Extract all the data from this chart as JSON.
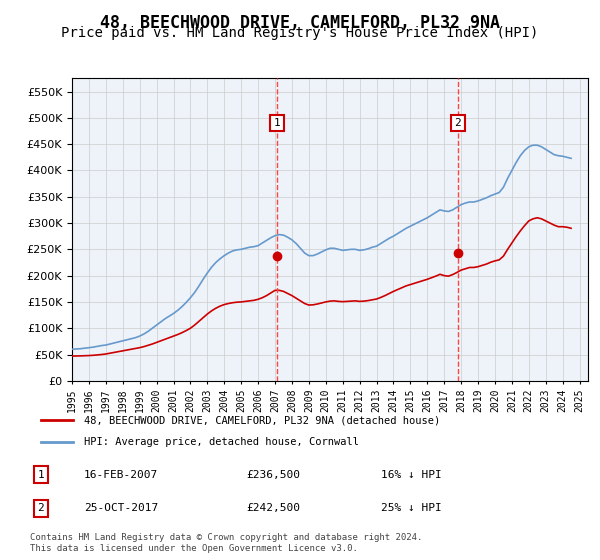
{
  "title": "48, BEECHWOOD DRIVE, CAMELFORD, PL32 9NA",
  "subtitle": "Price paid vs. HM Land Registry's House Price Index (HPI)",
  "title_fontsize": 12,
  "subtitle_fontsize": 10,
  "ylabel_ticks": [
    "£0",
    "£50K",
    "£100K",
    "£150K",
    "£200K",
    "£250K",
    "£300K",
    "£350K",
    "£400K",
    "£450K",
    "£500K",
    "£550K"
  ],
  "ytick_values": [
    0,
    50000,
    100000,
    150000,
    200000,
    250000,
    300000,
    350000,
    400000,
    450000,
    500000,
    550000
  ],
  "ylim": [
    0,
    575000
  ],
  "xlim_start": 1995.0,
  "xlim_end": 2025.5,
  "sale1_date": "16-FEB-2007",
  "sale1_price": 236500,
  "sale1_year": 2007.12,
  "sale1_label": "1",
  "sale1_hpi_pct": "16% ↓ HPI",
  "sale2_date": "25-OCT-2017",
  "sale2_price": 242500,
  "sale2_year": 2017.81,
  "sale2_label": "2",
  "sale2_hpi_pct": "25% ↓ HPI",
  "line_red_color": "#cc0000",
  "line_blue_color": "#6699cc",
  "marker_box_color": "#cc0000",
  "vline_color": "#ff4444",
  "background_color": "#e8f0f8",
  "plot_bg_color": "#eef3fa",
  "legend_address": "48, BEECHWOOD DRIVE, CAMELFORD, PL32 9NA (detached house)",
  "legend_hpi": "HPI: Average price, detached house, Cornwall",
  "footer": "Contains HM Land Registry data © Crown copyright and database right 2024.\nThis data is licensed under the Open Government Licence v3.0.",
  "hpi_years": [
    1995.0,
    1995.25,
    1995.5,
    1995.75,
    1996.0,
    1996.25,
    1996.5,
    1996.75,
    1997.0,
    1997.25,
    1997.5,
    1997.75,
    1998.0,
    1998.25,
    1998.5,
    1998.75,
    1999.0,
    1999.25,
    1999.5,
    1999.75,
    2000.0,
    2000.25,
    2000.5,
    2000.75,
    2001.0,
    2001.25,
    2001.5,
    2001.75,
    2002.0,
    2002.25,
    2002.5,
    2002.75,
    2003.0,
    2003.25,
    2003.5,
    2003.75,
    2004.0,
    2004.25,
    2004.5,
    2004.75,
    2005.0,
    2005.25,
    2005.5,
    2005.75,
    2006.0,
    2006.25,
    2006.5,
    2006.75,
    2007.0,
    2007.25,
    2007.5,
    2007.75,
    2008.0,
    2008.25,
    2008.5,
    2008.75,
    2009.0,
    2009.25,
    2009.5,
    2009.75,
    2010.0,
    2010.25,
    2010.5,
    2010.75,
    2011.0,
    2011.25,
    2011.5,
    2011.75,
    2012.0,
    2012.25,
    2012.5,
    2012.75,
    2013.0,
    2013.25,
    2013.5,
    2013.75,
    2014.0,
    2014.25,
    2014.5,
    2014.75,
    2015.0,
    2015.25,
    2015.5,
    2015.75,
    2016.0,
    2016.25,
    2016.5,
    2016.75,
    2017.0,
    2017.25,
    2017.5,
    2017.75,
    2018.0,
    2018.25,
    2018.5,
    2018.75,
    2019.0,
    2019.25,
    2019.5,
    2019.75,
    2020.0,
    2020.25,
    2020.5,
    2020.75,
    2021.0,
    2021.25,
    2021.5,
    2021.75,
    2022.0,
    2022.25,
    2022.5,
    2022.75,
    2023.0,
    2023.25,
    2023.5,
    2023.75,
    2024.0,
    2024.25,
    2024.5
  ],
  "hpi_values": [
    60000,
    60500,
    61000,
    62000,
    63000,
    64000,
    65500,
    67000,
    68000,
    70000,
    72000,
    74000,
    76000,
    78000,
    80000,
    82000,
    85000,
    89000,
    94000,
    100000,
    106000,
    112000,
    118000,
    123000,
    128000,
    134000,
    141000,
    149000,
    158000,
    168000,
    180000,
    193000,
    205000,
    216000,
    225000,
    232000,
    238000,
    243000,
    247000,
    249000,
    250000,
    252000,
    254000,
    255000,
    257000,
    262000,
    267000,
    272000,
    276000,
    278000,
    277000,
    273000,
    268000,
    261000,
    252000,
    243000,
    238000,
    238000,
    241000,
    245000,
    249000,
    252000,
    252000,
    250000,
    248000,
    249000,
    250000,
    250000,
    248000,
    249000,
    251000,
    254000,
    256000,
    261000,
    266000,
    271000,
    275000,
    280000,
    285000,
    290000,
    294000,
    298000,
    302000,
    306000,
    310000,
    315000,
    320000,
    325000,
    323000,
    322000,
    325000,
    330000,
    335000,
    338000,
    340000,
    340000,
    342000,
    345000,
    348000,
    352000,
    355000,
    358000,
    368000,
    385000,
    400000,
    415000,
    428000,
    438000,
    445000,
    448000,
    448000,
    445000,
    440000,
    435000,
    430000,
    428000,
    427000,
    425000,
    423000
  ],
  "red_years": [
    1995.0,
    1995.25,
    1995.5,
    1995.75,
    1996.0,
    1996.25,
    1996.5,
    1996.75,
    1997.0,
    1997.25,
    1997.5,
    1997.75,
    1998.0,
    1998.25,
    1998.5,
    1998.75,
    1999.0,
    1999.25,
    1999.5,
    1999.75,
    2000.0,
    2000.25,
    2000.5,
    2000.75,
    2001.0,
    2001.25,
    2001.5,
    2001.75,
    2002.0,
    2002.25,
    2002.5,
    2002.75,
    2003.0,
    2003.25,
    2003.5,
    2003.75,
    2004.0,
    2004.25,
    2004.5,
    2004.75,
    2005.0,
    2005.25,
    2005.5,
    2005.75,
    2006.0,
    2006.25,
    2006.5,
    2006.75,
    2007.0,
    2007.25,
    2007.5,
    2007.75,
    2008.0,
    2008.25,
    2008.5,
    2008.75,
    2009.0,
    2009.25,
    2009.5,
    2009.75,
    2010.0,
    2010.25,
    2010.5,
    2010.75,
    2011.0,
    2011.25,
    2011.5,
    2011.75,
    2012.0,
    2012.25,
    2012.5,
    2012.75,
    2013.0,
    2013.25,
    2013.5,
    2013.75,
    2014.0,
    2014.25,
    2014.5,
    2014.75,
    2015.0,
    2015.25,
    2015.5,
    2015.75,
    2016.0,
    2016.25,
    2016.5,
    2016.75,
    2017.0,
    2017.25,
    2017.5,
    2017.75,
    2018.0,
    2018.25,
    2018.5,
    2018.75,
    2019.0,
    2019.25,
    2019.5,
    2019.75,
    2020.0,
    2020.25,
    2020.5,
    2020.75,
    2021.0,
    2021.25,
    2021.5,
    2021.75,
    2022.0,
    2022.25,
    2022.5,
    2022.75,
    2023.0,
    2023.25,
    2023.5,
    2023.75,
    2024.0,
    2024.25,
    2024.5
  ],
  "red_values": [
    47000,
    47200,
    47400,
    47700,
    48000,
    48500,
    49200,
    50000,
    51000,
    52500,
    54000,
    55500,
    57000,
    58500,
    60000,
    61500,
    63000,
    65000,
    67500,
    70000,
    73000,
    76000,
    79000,
    82000,
    85000,
    88000,
    91500,
    95500,
    100000,
    106000,
    113000,
    120000,
    127000,
    133000,
    138000,
    142000,
    145000,
    147000,
    148500,
    149500,
    150000,
    151000,
    152000,
    153000,
    155000,
    158000,
    162000,
    167000,
    172000,
    172000,
    170000,
    166000,
    162000,
    157000,
    152000,
    147000,
    144000,
    144500,
    146000,
    148000,
    150000,
    151500,
    152000,
    151000,
    150500,
    151000,
    151500,
    152000,
    151000,
    151500,
    152500,
    154000,
    155500,
    158500,
    162000,
    166000,
    170000,
    173500,
    177000,
    180500,
    183000,
    185500,
    188000,
    190500,
    193000,
    196000,
    199000,
    202500,
    200000,
    199000,
    202000,
    206000,
    210500,
    213000,
    215500,
    215500,
    217000,
    219500,
    222000,
    225500,
    228000,
    230000,
    237000,
    250000,
    262000,
    274000,
    285000,
    295000,
    304000,
    308000,
    310000,
    308000,
    304000,
    300000,
    296000,
    293000,
    293000,
    292000,
    290000
  ]
}
